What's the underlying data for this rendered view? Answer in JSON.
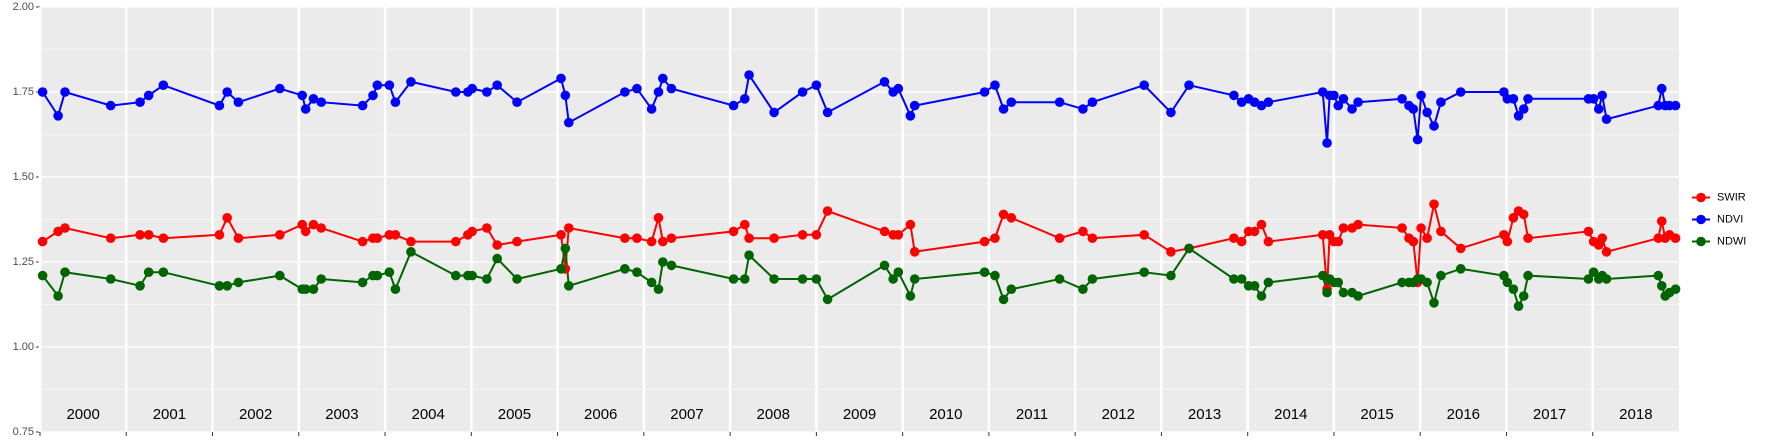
{
  "chart_data": {
    "type": "line",
    "x": [
      2000.03,
      2000.21,
      2000.29,
      2000.82,
      2001.16,
      2001.26,
      2001.43,
      2002.08,
      2002.17,
      2002.3,
      2002.78,
      2003.04,
      2003.08,
      2003.17,
      2003.26,
      2003.74,
      2003.86,
      2003.91,
      2004.05,
      2004.12,
      2004.3,
      2004.82,
      2004.96,
      2005.01,
      2005.18,
      2005.3,
      2005.53,
      2006.04,
      2006.09,
      2006.13,
      2006.78,
      2006.92,
      2007.09,
      2007.17,
      2007.22,
      2007.32,
      2008.04,
      2008.17,
      2008.22,
      2008.51,
      2008.84,
      2009.0,
      2009.13,
      2009.79,
      2009.89,
      2009.95,
      2010.09,
      2010.14,
      2010.95,
      2011.07,
      2011.17,
      2011.26,
      2011.82,
      2012.09,
      2012.2,
      2012.8,
      2013.11,
      2013.32,
      2013.84,
      2013.93,
      2014.01,
      2014.08,
      2014.16,
      2014.24,
      2014.87,
      2014.92,
      2014.95,
      2015.0,
      2015.05,
      2015.11,
      2015.21,
      2015.28,
      2015.79,
      2015.87,
      2015.92,
      2015.97,
      2016.01,
      2016.08,
      2016.16,
      2016.24,
      2016.47,
      2016.97,
      2017.01,
      2017.08,
      2017.14,
      2017.2,
      2017.25,
      2017.95,
      2018.01,
      2018.07,
      2018.11,
      2018.16,
      2018.76,
      2018.8,
      2018.84,
      2018.89,
      2018.96
    ],
    "series": [
      {
        "name": "SWIR",
        "color": "#ff0000",
        "values": [
          1.31,
          1.34,
          1.35,
          1.32,
          1.33,
          1.33,
          1.32,
          1.33,
          1.38,
          1.32,
          1.33,
          1.36,
          1.34,
          1.36,
          1.35,
          1.31,
          1.32,
          1.32,
          1.33,
          1.33,
          1.31,
          1.31,
          1.33,
          1.34,
          1.35,
          1.3,
          1.31,
          1.33,
          1.23,
          1.35,
          1.32,
          1.32,
          1.31,
          1.38,
          1.31,
          1.32,
          1.34,
          1.36,
          1.32,
          1.32,
          1.33,
          1.33,
          1.4,
          1.34,
          1.33,
          1.33,
          1.36,
          1.28,
          1.31,
          1.32,
          1.39,
          1.38,
          1.32,
          1.34,
          1.32,
          1.33,
          1.28,
          1.29,
          1.32,
          1.31,
          1.34,
          1.34,
          1.36,
          1.31,
          1.33,
          1.17,
          1.33,
          1.31,
          1.31,
          1.35,
          1.35,
          1.36,
          1.35,
          1.32,
          1.31,
          1.19,
          1.35,
          1.32,
          1.42,
          1.34,
          1.29,
          1.33,
          1.31,
          1.38,
          1.4,
          1.39,
          1.32,
          1.34,
          1.31,
          1.3,
          1.32,
          1.28,
          1.32,
          1.37,
          1.32,
          1.33,
          1.32
        ]
      },
      {
        "name": "NDVI",
        "color": "#0000ff",
        "values": [
          1.75,
          1.68,
          1.75,
          1.71,
          1.72,
          1.74,
          1.77,
          1.71,
          1.75,
          1.72,
          1.76,
          1.74,
          1.7,
          1.73,
          1.72,
          1.71,
          1.74,
          1.77,
          1.77,
          1.72,
          1.78,
          1.75,
          1.75,
          1.76,
          1.75,
          1.77,
          1.72,
          1.79,
          1.74,
          1.66,
          1.75,
          1.76,
          1.7,
          1.75,
          1.79,
          1.76,
          1.71,
          1.73,
          1.8,
          1.69,
          1.75,
          1.77,
          1.69,
          1.78,
          1.75,
          1.76,
          1.68,
          1.71,
          1.75,
          1.77,
          1.7,
          1.72,
          1.72,
          1.7,
          1.72,
          1.77,
          1.69,
          1.77,
          1.74,
          1.72,
          1.73,
          1.72,
          1.71,
          1.72,
          1.75,
          1.6,
          1.74,
          1.74,
          1.71,
          1.73,
          1.7,
          1.72,
          1.73,
          1.71,
          1.7,
          1.61,
          1.74,
          1.69,
          1.65,
          1.72,
          1.75,
          1.75,
          1.73,
          1.73,
          1.68,
          1.7,
          1.73,
          1.73,
          1.73,
          1.7,
          1.74,
          1.67,
          1.71,
          1.76,
          1.71,
          1.71,
          1.71
        ]
      },
      {
        "name": "NDWI",
        "color": "#006400",
        "values": [
          1.21,
          1.15,
          1.22,
          1.2,
          1.18,
          1.22,
          1.22,
          1.18,
          1.18,
          1.19,
          1.21,
          1.17,
          1.17,
          1.17,
          1.2,
          1.19,
          1.21,
          1.21,
          1.22,
          1.17,
          1.28,
          1.21,
          1.21,
          1.21,
          1.2,
          1.26,
          1.2,
          1.23,
          1.29,
          1.18,
          1.23,
          1.22,
          1.19,
          1.17,
          1.25,
          1.24,
          1.2,
          1.2,
          1.27,
          1.2,
          1.2,
          1.2,
          1.14,
          1.24,
          1.2,
          1.22,
          1.15,
          1.2,
          1.22,
          1.21,
          1.14,
          1.17,
          1.2,
          1.17,
          1.2,
          1.22,
          1.21,
          1.29,
          1.2,
          1.2,
          1.18,
          1.18,
          1.15,
          1.19,
          1.21,
          1.16,
          1.2,
          1.19,
          1.19,
          1.16,
          1.16,
          1.15,
          1.19,
          1.19,
          1.19,
          1.2,
          1.2,
          1.19,
          1.13,
          1.21,
          1.23,
          1.21,
          1.19,
          1.17,
          1.12,
          1.15,
          1.21,
          1.2,
          1.22,
          1.2,
          1.21,
          1.2,
          1.21,
          1.18,
          1.15,
          1.16,
          1.17
        ]
      }
    ],
    "xlim": [
      2000,
      2019
    ],
    "xticks": [
      2000,
      2001,
      2002,
      2003,
      2004,
      2005,
      2006,
      2007,
      2008,
      2009,
      2010,
      2011,
      2012,
      2013,
      2014,
      2015,
      2016,
      2017,
      2018
    ],
    "ylim": [
      0.75,
      2
    ],
    "yticks": [
      0.75,
      {
        "value": 1,
        "label": "1.00"
      },
      1.25,
      {
        "value": 1.5,
        "label": "1.50"
      },
      1.75,
      {
        "value": 2,
        "label": "2.00"
      }
    ],
    "grid": true,
    "legend": "right"
  }
}
